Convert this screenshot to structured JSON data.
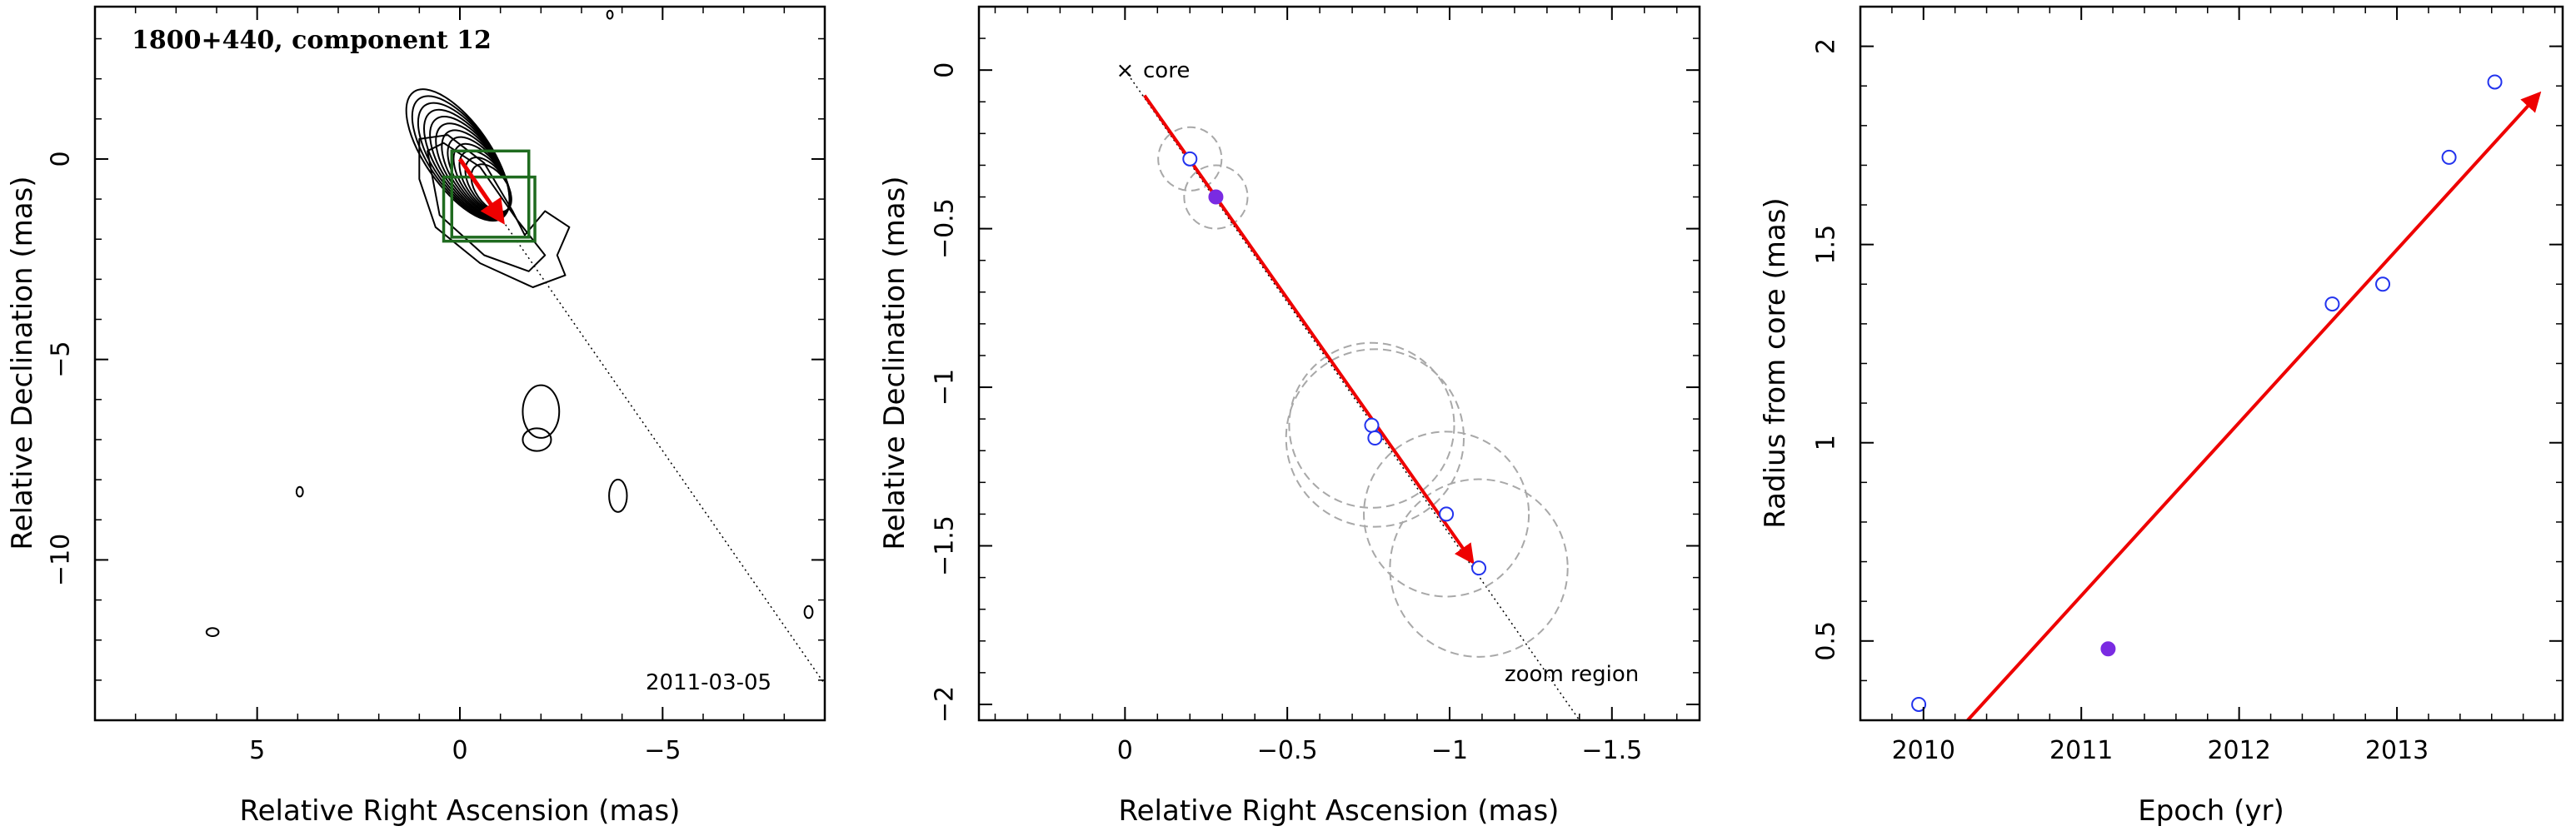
{
  "colors": {
    "contour": "#000000",
    "box": "#1f6b1f",
    "arrow": "#ee0000",
    "filled_point": "#7a2be2",
    "open_point": "#2233ee",
    "dashed_circle": "#a8a8a8"
  },
  "chart_data": [
    {
      "type": "contour",
      "title": "1800+440, component 12",
      "date_label": "2011-03-05",
      "xlabel": "Relative Right Ascension (mas)",
      "ylabel": "Relative Declination (mas)",
      "xlim": [
        9,
        -9
      ],
      "ylim": [
        -14,
        3.8
      ],
      "xticks": [
        5,
        0,
        -5
      ],
      "xtick_labels": [
        "5",
        "0",
        "−5"
      ],
      "yticks": [
        0,
        -5,
        -10
      ],
      "ytick_labels": [
        "0",
        "−5",
        "−10"
      ],
      "zoom_boxes": [
        {
          "x1": 0.2,
          "x2": -1.7,
          "y1": 0.2,
          "y2": -1.95
        },
        {
          "x1": 0.4,
          "x2": -1.85,
          "y1": -0.45,
          "y2": -2.05
        }
      ],
      "arrow": {
        "x0": 0,
        "y0": 0,
        "x1": -1.05,
        "y1": -1.55
      },
      "guide_line": {
        "x0": 0,
        "y0": 0,
        "x1": -9,
        "y1": -13.1
      },
      "contours": {
        "core_levels": 12,
        "extended_outline": [
          [
            1.0,
            0.5
          ],
          [
            1.0,
            -0.5
          ],
          [
            0.6,
            -1.7
          ],
          [
            -0.5,
            -2.6
          ],
          [
            -1.8,
            -3.2
          ],
          [
            -2.6,
            -2.9
          ],
          [
            -2.4,
            -2.4
          ],
          [
            -2.7,
            -1.7
          ],
          [
            -2.1,
            -1.3
          ],
          [
            -1.6,
            -1.9
          ],
          [
            -1.3,
            -1.3
          ],
          [
            -0.6,
            -0.1
          ],
          [
            0.3,
            0.6
          ]
        ],
        "middle_outline": [
          [
            0.8,
            0.2
          ],
          [
            0.5,
            -1.4
          ],
          [
            -0.6,
            -2.4
          ],
          [
            -1.7,
            -2.8
          ],
          [
            -2.1,
            -2.4
          ],
          [
            -1.4,
            -1.5
          ],
          [
            -0.5,
            -0.2
          ],
          [
            0.4,
            0.4
          ]
        ],
        "islands": [
          {
            "x": -2.0,
            "y": -6.3,
            "rx": 0.45,
            "ry": 0.65
          },
          {
            "x": -1.9,
            "y": -7.0,
            "rx": 0.35,
            "ry": 0.28
          },
          {
            "x": -3.9,
            "y": -8.4,
            "rx": 0.22,
            "ry": 0.4
          },
          {
            "x": 3.95,
            "y": -8.3,
            "rx": 0.08,
            "ry": 0.12
          },
          {
            "x": 6.1,
            "y": -11.8,
            "rx": 0.15,
            "ry": 0.1
          },
          {
            "x": -3.7,
            "y": 3.6,
            "rx": 0.07,
            "ry": 0.1
          },
          {
            "x": -8.6,
            "y": -11.3,
            "rx": 0.1,
            "ry": 0.15
          }
        ]
      }
    },
    {
      "type": "scatter",
      "xlabel": "Relative Right Ascension (mas)",
      "ylabel": "Relative Declination (mas)",
      "xlim": [
        0.45,
        -1.77
      ],
      "ylim": [
        -2.05,
        0.2
      ],
      "xticks": [
        0,
        -0.5,
        -1,
        -1.5
      ],
      "xtick_labels": [
        "0",
        "−0.5",
        "−1",
        "−1.5"
      ],
      "yticks": [
        0,
        -0.5,
        -1,
        -1.5,
        -2
      ],
      "ytick_labels": [
        "0",
        "−0.5",
        "−1",
        "−1.5",
        "−2"
      ],
      "core_label": "core",
      "core_marker": "×",
      "annotation": "zoom region",
      "points": [
        {
          "x": -0.2,
          "y": -0.28,
          "filled": false,
          "size": 0.1
        },
        {
          "x": -0.28,
          "y": -0.4,
          "filled": true,
          "size": 0.1
        },
        {
          "x": -0.76,
          "y": -1.12,
          "filled": false,
          "size": 0.26
        },
        {
          "x": -0.77,
          "y": -1.16,
          "filled": false,
          "size": 0.28
        },
        {
          "x": -0.99,
          "y": -1.4,
          "filled": false,
          "size": 0.26
        },
        {
          "x": -1.09,
          "y": -1.57,
          "filled": false,
          "size": 0.28
        }
      ],
      "arrow": {
        "x0": -0.06,
        "y0": -0.08,
        "x1": -1.07,
        "y1": -1.55
      },
      "guide_line": {
        "x0": 0,
        "y0": 0,
        "x1": -1.4,
        "y1": -2.05
      }
    },
    {
      "type": "scatter",
      "xlabel": "Epoch (yr)",
      "ylabel": "Radius from core (mas)",
      "xlim": [
        2009.6,
        2014.05
      ],
      "ylim": [
        0.3,
        2.1
      ],
      "xticks": [
        2010,
        2011,
        2012,
        2013
      ],
      "xtick_labels": [
        "2010",
        "2011",
        "2012",
        "2013"
      ],
      "yticks": [
        0.5,
        1,
        1.5,
        2
      ],
      "ytick_labels": [
        "0.5",
        "1",
        "1.5",
        "2"
      ],
      "points": [
        {
          "x": 2009.97,
          "y": 0.34,
          "filled": false
        },
        {
          "x": 2011.17,
          "y": 0.48,
          "filled": true
        },
        {
          "x": 2012.59,
          "y": 1.35,
          "filled": false
        },
        {
          "x": 2012.91,
          "y": 1.4,
          "filled": false
        },
        {
          "x": 2013.33,
          "y": 1.72,
          "filled": false
        },
        {
          "x": 2013.62,
          "y": 1.91,
          "filled": false
        }
      ],
      "fit_arrow": {
        "x0": 2010.28,
        "y0": 0.3,
        "x1": 2013.9,
        "y1": 1.88
      }
    }
  ]
}
